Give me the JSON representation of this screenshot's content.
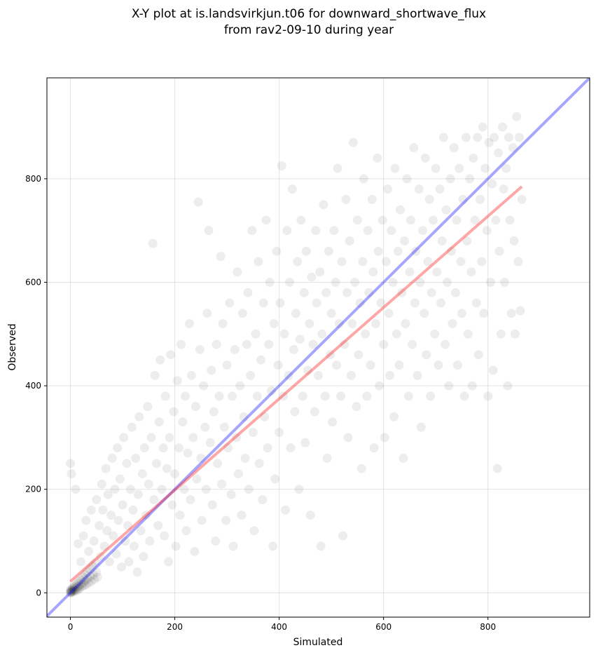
{
  "chart_data": {
    "type": "scatter",
    "title_lines": [
      "X-Y plot at is.landsvirkjun.t06 for downward_shortwave_flux",
      "from rav2-09-10 during year"
    ],
    "xlabel": "Simulated",
    "ylabel": "Observed",
    "xlim": [
      -45,
      995
    ],
    "ylim": [
      -47,
      995
    ],
    "xticks": [
      0,
      200,
      400,
      600,
      800
    ],
    "yticks": [
      0,
      200,
      400,
      600,
      800
    ],
    "grid": true,
    "point_color": "#000000",
    "point_opacity": 0.07,
    "reference_lines": [
      {
        "kind": "one_to_one",
        "color": "#0000ff",
        "x": [
          -45,
          995
        ],
        "y": [
          -45,
          995
        ]
      },
      {
        "kind": "regression_fit",
        "color": "#ff0000",
        "x": [
          0,
          865
        ],
        "y": [
          22,
          785
        ]
      }
    ],
    "points": [
      [
        0,
        0
      ],
      [
        0,
        2
      ],
      [
        1,
        1
      ],
      [
        2,
        3
      ],
      [
        0,
        5
      ],
      [
        1,
        6
      ],
      [
        2,
        0
      ],
      [
        3,
        4
      ],
      [
        4,
        8
      ],
      [
        5,
        2
      ],
      [
        5,
        10
      ],
      [
        6,
        6
      ],
      [
        7,
        3
      ],
      [
        8,
        12
      ],
      [
        9,
        5
      ],
      [
        10,
        15
      ],
      [
        11,
        9
      ],
      [
        12,
        4
      ],
      [
        13,
        18
      ],
      [
        14,
        11
      ],
      [
        15,
        7
      ],
      [
        16,
        22
      ],
      [
        17,
        14
      ],
      [
        18,
        9
      ],
      [
        20,
        25
      ],
      [
        21,
        17
      ],
      [
        22,
        12
      ],
      [
        24,
        30
      ],
      [
        25,
        20
      ],
      [
        26,
        14
      ],
      [
        28,
        35
      ],
      [
        29,
        24
      ],
      [
        30,
        16
      ],
      [
        32,
        40
      ],
      [
        33,
        27
      ],
      [
        35,
        19
      ],
      [
        37,
        46
      ],
      [
        38,
        31
      ],
      [
        40,
        22
      ],
      [
        42,
        52
      ],
      [
        44,
        35
      ],
      [
        46,
        26
      ],
      [
        48,
        58
      ],
      [
        50,
        40
      ],
      [
        52,
        30
      ],
      [
        0,
        250
      ],
      [
        2,
        230
      ],
      [
        10,
        200
      ],
      [
        15,
        95
      ],
      [
        20,
        60
      ],
      [
        25,
        110
      ],
      [
        30,
        140
      ],
      [
        35,
        80
      ],
      [
        40,
        160
      ],
      [
        45,
        100
      ],
      [
        50,
        180
      ],
      [
        55,
        130
      ],
      [
        58,
        70
      ],
      [
        60,
        210
      ],
      [
        62,
        160
      ],
      [
        65,
        90
      ],
      [
        68,
        240
      ],
      [
        70,
        120
      ],
      [
        72,
        190
      ],
      [
        75,
        60
      ],
      [
        78,
        150
      ],
      [
        80,
        260
      ],
      [
        82,
        110
      ],
      [
        85,
        200
      ],
      [
        88,
        75
      ],
      [
        90,
        280
      ],
      [
        92,
        140
      ],
      [
        95,
        220
      ],
      [
        98,
        50
      ],
      [
        100,
        170
      ],
      [
        102,
        300
      ],
      [
        105,
        100
      ],
      [
        108,
        250
      ],
      [
        110,
        130
      ],
      [
        112,
        60
      ],
      [
        115,
        200
      ],
      [
        118,
        320
      ],
      [
        120,
        160
      ],
      [
        122,
        90
      ],
      [
        125,
        260
      ],
      [
        128,
        40
      ],
      [
        130,
        190
      ],
      [
        132,
        340
      ],
      [
        135,
        120
      ],
      [
        138,
        230
      ],
      [
        140,
        70
      ],
      [
        142,
        280
      ],
      [
        145,
        150
      ],
      [
        148,
        360
      ],
      [
        150,
        210
      ],
      [
        152,
        100
      ],
      [
        155,
        300
      ],
      [
        158,
        675
      ],
      [
        160,
        180
      ],
      [
        162,
        420
      ],
      [
        165,
        250
      ],
      [
        168,
        130
      ],
      [
        170,
        330
      ],
      [
        172,
        450
      ],
      [
        175,
        200
      ],
      [
        178,
        280
      ],
      [
        180,
        110
      ],
      [
        182,
        380
      ],
      [
        185,
        240
      ],
      [
        188,
        60
      ],
      [
        190,
        300
      ],
      [
        192,
        460
      ],
      [
        195,
        170
      ],
      [
        198,
        350
      ],
      [
        200,
        230
      ],
      [
        202,
        90
      ],
      [
        205,
        410
      ],
      [
        208,
        280
      ],
      [
        210,
        150
      ],
      [
        212,
        480
      ],
      [
        215,
        330
      ],
      [
        218,
        200
      ],
      [
        220,
        380
      ],
      [
        222,
        120
      ],
      [
        225,
        270
      ],
      [
        228,
        520
      ],
      [
        230,
        180
      ],
      [
        232,
        420
      ],
      [
        235,
        300
      ],
      [
        238,
        80
      ],
      [
        240,
        360
      ],
      [
        242,
        220
      ],
      [
        245,
        755
      ],
      [
        248,
        470
      ],
      [
        250,
        260
      ],
      [
        252,
        140
      ],
      [
        255,
        400
      ],
      [
        258,
        320
      ],
      [
        260,
        200
      ],
      [
        262,
        540
      ],
      [
        265,
        700
      ],
      [
        268,
        290
      ],
      [
        270,
        430
      ],
      [
        272,
        170
      ],
      [
        275,
        350
      ],
      [
        278,
        100
      ],
      [
        280,
        480
      ],
      [
        282,
        250
      ],
      [
        285,
        380
      ],
      [
        288,
        650
      ],
      [
        290,
        210
      ],
      [
        292,
        520
      ],
      [
        295,
        320
      ],
      [
        298,
        140
      ],
      [
        300,
        440
      ],
      [
        302,
        280
      ],
      [
        305,
        560
      ],
      [
        308,
        190
      ],
      [
        310,
        380
      ],
      [
        312,
        90
      ],
      [
        315,
        470
      ],
      [
        318,
        300
      ],
      [
        320,
        620
      ],
      [
        322,
        230
      ],
      [
        325,
        400
      ],
      [
        328,
        150
      ],
      [
        330,
        540
      ],
      [
        332,
        340
      ],
      [
        335,
        260
      ],
      [
        338,
        480
      ],
      [
        340,
        580
      ],
      [
        342,
        200
      ],
      [
        345,
        420
      ],
      [
        348,
        700
      ],
      [
        350,
        310
      ],
      [
        352,
        120
      ],
      [
        355,
        500
      ],
      [
        358,
        380
      ],
      [
        360,
        640
      ],
      [
        362,
        250
      ],
      [
        365,
        450
      ],
      [
        368,
        180
      ],
      [
        370,
        560
      ],
      [
        372,
        340
      ],
      [
        375,
        720
      ],
      [
        378,
        280
      ],
      [
        380,
        480
      ],
      [
        382,
        600
      ],
      [
        385,
        390
      ],
      [
        388,
        90
      ],
      [
        390,
        520
      ],
      [
        392,
        220
      ],
      [
        395,
        660
      ],
      [
        398,
        440
      ],
      [
        400,
        310
      ],
      [
        402,
        560
      ],
      [
        405,
        825
      ],
      [
        408,
        380
      ],
      [
        410,
        500
      ],
      [
        412,
        160
      ],
      [
        415,
        700
      ],
      [
        418,
        420
      ],
      [
        420,
        600
      ],
      [
        422,
        280
      ],
      [
        425,
        780
      ],
      [
        428,
        470
      ],
      [
        430,
        350
      ],
      [
        432,
        540
      ],
      [
        435,
        640
      ],
      [
        438,
        200
      ],
      [
        440,
        490
      ],
      [
        442,
        720
      ],
      [
        445,
        380
      ],
      [
        448,
        580
      ],
      [
        450,
        290
      ],
      [
        452,
        660
      ],
      [
        455,
        430
      ],
      [
        458,
        520
      ],
      [
        460,
        150
      ],
      [
        462,
        610
      ],
      [
        465,
        480
      ],
      [
        468,
        350
      ],
      [
        470,
        700
      ],
      [
        472,
        560
      ],
      [
        475,
        420
      ],
      [
        478,
        620
      ],
      [
        480,
        90
      ],
      [
        482,
        500
      ],
      [
        485,
        750
      ],
      [
        488,
        380
      ],
      [
        490,
        580
      ],
      [
        492,
        260
      ],
      [
        495,
        660
      ],
      [
        498,
        460
      ],
      [
        500,
        540
      ],
      [
        502,
        330
      ],
      [
        505,
        700
      ],
      [
        508,
        600
      ],
      [
        510,
        440
      ],
      [
        512,
        820
      ],
      [
        515,
        520
      ],
      [
        518,
        380
      ],
      [
        520,
        640
      ],
      [
        522,
        110
      ],
      [
        525,
        480
      ],
      [
        528,
        760
      ],
      [
        530,
        580
      ],
      [
        532,
        300
      ],
      [
        535,
        680
      ],
      [
        538,
        420
      ],
      [
        540,
        520
      ],
      [
        542,
        870
      ],
      [
        545,
        600
      ],
      [
        548,
        360
      ],
      [
        550,
        720
      ],
      [
        552,
        460
      ],
      [
        555,
        560
      ],
      [
        558,
        240
      ],
      [
        560,
        640
      ],
      [
        562,
        800
      ],
      [
        565,
        500
      ],
      [
        568,
        380
      ],
      [
        570,
        700
      ],
      [
        572,
        580
      ],
      [
        575,
        440
      ],
      [
        578,
        760
      ],
      [
        580,
        620
      ],
      [
        582,
        280
      ],
      [
        585,
        520
      ],
      [
        588,
        840
      ],
      [
        590,
        660
      ],
      [
        592,
        400
      ],
      [
        595,
        560
      ],
      [
        598,
        720
      ],
      [
        600,
        480
      ],
      [
        602,
        300
      ],
      [
        605,
        640
      ],
      [
        608,
        780
      ],
      [
        610,
        540
      ],
      [
        612,
        420
      ],
      [
        615,
        700
      ],
      [
        618,
        600
      ],
      [
        620,
        340
      ],
      [
        622,
        820
      ],
      [
        625,
        500
      ],
      [
        628,
        660
      ],
      [
        630,
        440
      ],
      [
        632,
        740
      ],
      [
        635,
        580
      ],
      [
        638,
        260
      ],
      [
        640,
        680
      ],
      [
        642,
        520
      ],
      [
        645,
        800
      ],
      [
        648,
        380
      ],
      [
        650,
        620
      ],
      [
        652,
        720
      ],
      [
        655,
        480
      ],
      [
        658,
        860
      ],
      [
        660,
        560
      ],
      [
        662,
        660
      ],
      [
        665,
        420
      ],
      [
        668,
        780
      ],
      [
        670,
        600
      ],
      [
        672,
        320
      ],
      [
        675,
        700
      ],
      [
        678,
        540
      ],
      [
        680,
        840
      ],
      [
        682,
        460
      ],
      [
        685,
        640
      ],
      [
        688,
        760
      ],
      [
        690,
        380
      ],
      [
        692,
        580
      ],
      [
        695,
        720
      ],
      [
        698,
        500
      ],
      [
        700,
        820
      ],
      [
        702,
        620
      ],
      [
        705,
        440
      ],
      [
        708,
        780
      ],
      [
        710,
        560
      ],
      [
        712,
        680
      ],
      [
        715,
        880
      ],
      [
        718,
        480
      ],
      [
        720,
        740
      ],
      [
        722,
        600
      ],
      [
        725,
        400
      ],
      [
        728,
        800
      ],
      [
        730,
        660
      ],
      [
        732,
        520
      ],
      [
        735,
        860
      ],
      [
        738,
        580
      ],
      [
        740,
        720
      ],
      [
        742,
        440
      ],
      [
        745,
        820
      ],
      [
        748,
        640
      ],
      [
        750,
        540
      ],
      [
        752,
        760
      ],
      [
        755,
        380
      ],
      [
        758,
        880
      ],
      [
        760,
        680
      ],
      [
        762,
        500
      ],
      [
        765,
        800
      ],
      [
        768,
        620
      ],
      [
        770,
        400
      ],
      [
        772,
        840
      ],
      [
        775,
        720
      ],
      [
        778,
        560
      ],
      [
        780,
        880
      ],
      [
        782,
        460
      ],
      [
        785,
        760
      ],
      [
        788,
        640
      ],
      [
        790,
        900
      ],
      [
        792,
        540
      ],
      [
        795,
        820
      ],
      [
        798,
        700
      ],
      [
        800,
        380
      ],
      [
        802,
        870
      ],
      [
        805,
        600
      ],
      [
        808,
        790
      ],
      [
        810,
        430
      ],
      [
        812,
        880
      ],
      [
        815,
        720
      ],
      [
        818,
        240
      ],
      [
        820,
        850
      ],
      [
        822,
        660
      ],
      [
        825,
        500
      ],
      [
        828,
        900
      ],
      [
        830,
        780
      ],
      [
        832,
        600
      ],
      [
        835,
        820
      ],
      [
        838,
        400
      ],
      [
        840,
        880
      ],
      [
        842,
        720
      ],
      [
        845,
        540
      ],
      [
        848,
        860
      ],
      [
        850,
        680
      ],
      [
        852,
        500
      ],
      [
        855,
        920
      ],
      [
        858,
        640
      ],
      [
        860,
        880
      ],
      [
        862,
        545
      ],
      [
        865,
        760
      ]
    ]
  }
}
